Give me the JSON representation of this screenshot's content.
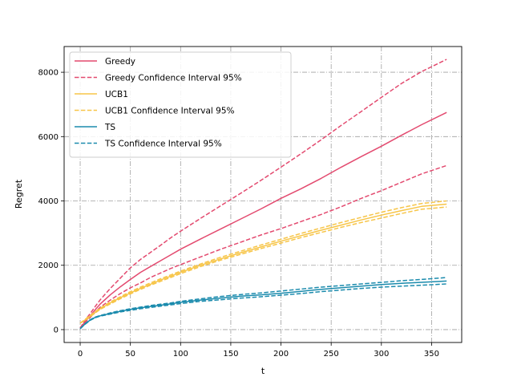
{
  "chart_data": {
    "type": "line",
    "title": "",
    "xlabel": "t",
    "ylabel": "Regret",
    "xlim": [
      -16,
      380
    ],
    "ylim": [
      -400,
      8800
    ],
    "xticks": [
      0,
      50,
      100,
      150,
      200,
      250,
      300,
      350
    ],
    "yticks": [
      0,
      2000,
      4000,
      6000,
      8000
    ],
    "grid": true,
    "grid_style": "dashdot",
    "legend_position": "upper left",
    "x": [
      0,
      5,
      10,
      15,
      20,
      30,
      40,
      50,
      60,
      70,
      80,
      90,
      100,
      120,
      140,
      160,
      180,
      200,
      220,
      240,
      260,
      280,
      300,
      320,
      340,
      365
    ],
    "series": [
      {
        "name": "Greedy",
        "style": "solid",
        "color": "#e34a6f",
        "values": [
          50,
          250,
          430,
          620,
          800,
          1080,
          1330,
          1560,
          1780,
          1960,
          2140,
          2320,
          2500,
          2820,
          3130,
          3440,
          3750,
          4080,
          4380,
          4700,
          5050,
          5380,
          5700,
          6040,
          6370,
          6750
        ]
      },
      {
        "name": "Greedy Confidence Interval 95%",
        "style": "dashed",
        "color": "#e34a6f",
        "values": [
          50,
          300,
          500,
          720,
          930,
          1280,
          1600,
          1920,
          2180,
          2400,
          2620,
          2850,
          3060,
          3460,
          3850,
          4240,
          4640,
          5050,
          5470,
          5900,
          6350,
          6780,
          7220,
          7650,
          8020,
          8400
        ]
      },
      {
        "name": "",
        "style": "dashed",
        "color": "#e34a6f",
        "values": [
          50,
          230,
          380,
          540,
          700,
          920,
          1120,
          1300,
          1450,
          1620,
          1760,
          1900,
          2020,
          2260,
          2500,
          2720,
          2940,
          3140,
          3360,
          3580,
          3820,
          4080,
          4320,
          4580,
          4840,
          5100
        ]
      },
      {
        "name": "UCB1",
        "style": "solid",
        "color": "#f7c548",
        "values": [
          200,
          300,
          420,
          540,
          650,
          830,
          990,
          1140,
          1280,
          1410,
          1540,
          1660,
          1780,
          2000,
          2200,
          2390,
          2570,
          2750,
          2920,
          3090,
          3250,
          3410,
          3560,
          3700,
          3830,
          3900
        ]
      },
      {
        "name": "UCB1 Confidence Interval 95%",
        "style": "dashed",
        "color": "#f7c548",
        "values": [
          200,
          320,
          440,
          560,
          670,
          860,
          1020,
          1180,
          1320,
          1450,
          1580,
          1700,
          1820,
          2040,
          2250,
          2440,
          2630,
          2810,
          2990,
          3160,
          3330,
          3490,
          3650,
          3790,
          3920,
          4000
        ]
      },
      {
        "name": "",
        "style": "dashed",
        "color": "#f7c548",
        "values": [
          200,
          290,
          400,
          520,
          630,
          800,
          960,
          1110,
          1250,
          1380,
          1500,
          1620,
          1740,
          1960,
          2160,
          2340,
          2520,
          2690,
          2860,
          3020,
          3180,
          3330,
          3470,
          3610,
          3740,
          3810
        ]
      },
      {
        "name": "TS",
        "style": "solid",
        "color": "#1b8bad",
        "values": [
          30,
          180,
          300,
          380,
          430,
          500,
          570,
          630,
          680,
          720,
          760,
          800,
          850,
          920,
          980,
          1040,
          1080,
          1130,
          1190,
          1250,
          1300,
          1350,
          1400,
          1440,
          1470,
          1510
        ]
      },
      {
        "name": "TS Confidence Interval 95%",
        "style": "dashed",
        "color": "#1b8bad",
        "values": [
          30,
          190,
          310,
          390,
          440,
          520,
          590,
          650,
          700,
          750,
          790,
          830,
          880,
          960,
          1030,
          1090,
          1140,
          1200,
          1260,
          1320,
          1370,
          1420,
          1470,
          1520,
          1560,
          1620
        ]
      },
      {
        "name": "",
        "style": "dashed",
        "color": "#1b8bad",
        "values": [
          30,
          170,
          290,
          370,
          420,
          480,
          550,
          600,
          650,
          690,
          730,
          770,
          810,
          880,
          930,
          980,
          1020,
          1070,
          1120,
          1180,
          1230,
          1280,
          1320,
          1350,
          1380,
          1420
        ]
      }
    ]
  }
}
